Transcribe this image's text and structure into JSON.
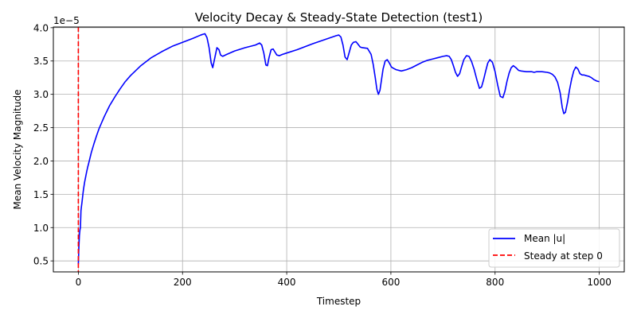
{
  "chart_data": {
    "type": "line",
    "title": "Velocity Decay & Steady-State Detection (test1)",
    "xlabel": "Timestep",
    "ylabel": "Mean Velocity Magnitude",
    "y_offset_text": "1e−5",
    "xlim": [
      -48,
      1048
    ],
    "ylim": [
      0.335,
      4.01
    ],
    "x_ticks": [
      0,
      200,
      400,
      600,
      800,
      1000
    ],
    "y_ticks": [
      0.5,
      1.0,
      1.5,
      2.0,
      2.5,
      3.0,
      3.5,
      4.0
    ],
    "y_tick_labels": [
      "0.5",
      "1.0",
      "1.5",
      "2.0",
      "2.5",
      "3.0",
      "3.5",
      "4.0"
    ],
    "grid": true,
    "legend_position": "lower-right",
    "series": [
      {
        "name": "Mean |u|",
        "color": "#0000ff",
        "style": "solid",
        "x": [
          0,
          1,
          2,
          3,
          4,
          5,
          6,
          7,
          8,
          9,
          10,
          12,
          14,
          16,
          18,
          20,
          25,
          30,
          35,
          40,
          50,
          60,
          70,
          80,
          90,
          100,
          120,
          140,
          160,
          180,
          200,
          220,
          235,
          243,
          247,
          251,
          255,
          258,
          262,
          266,
          270,
          273,
          277,
          285,
          300,
          320,
          340,
          348,
          352,
          356,
          360,
          363,
          366,
          370,
          374,
          377,
          381,
          386,
          392,
          400,
          420,
          450,
          480,
          495,
          500,
          504,
          508,
          512,
          516,
          520,
          524,
          528,
          533,
          537,
          541,
          545,
          555,
          562,
          566,
          570,
          573,
          576,
          579,
          582,
          585,
          589,
          593,
          597,
          601,
          605,
          610,
          620,
          630,
          640,
          650,
          660,
          670,
          680,
          690,
          700,
          707,
          712,
          716,
          720,
          724,
          728,
          732,
          736,
          740,
          745,
          750,
          755,
          760,
          765,
          770,
          774,
          778,
          782,
          786,
          790,
          795,
          800,
          805,
          810,
          815,
          819,
          823,
          827,
          831,
          835,
          840,
          845,
          850,
          860,
          870,
          875,
          880,
          890,
          900,
          905,
          910,
          915,
          920,
          925,
          929,
          932,
          935,
          939,
          943,
          947,
          951,
          955,
          959,
          963,
          967,
          971,
          975,
          980,
          985,
          990,
          995,
          1000
        ],
        "y": [
          0.45,
          0.7,
          0.88,
          0.96,
          1.0,
          1.25,
          1.32,
          1.38,
          1.45,
          1.52,
          1.58,
          1.68,
          1.76,
          1.84,
          1.91,
          1.97,
          2.13,
          2.26,
          2.38,
          2.49,
          2.67,
          2.83,
          2.96,
          3.08,
          3.19,
          3.28,
          3.43,
          3.55,
          3.64,
          3.72,
          3.78,
          3.84,
          3.89,
          3.91,
          3.85,
          3.7,
          3.47,
          3.4,
          3.55,
          3.7,
          3.67,
          3.59,
          3.57,
          3.6,
          3.65,
          3.7,
          3.74,
          3.77,
          3.74,
          3.62,
          3.44,
          3.43,
          3.55,
          3.67,
          3.68,
          3.64,
          3.59,
          3.58,
          3.6,
          3.62,
          3.67,
          3.76,
          3.84,
          3.88,
          3.89,
          3.86,
          3.74,
          3.56,
          3.52,
          3.63,
          3.74,
          3.78,
          3.79,
          3.75,
          3.71,
          3.7,
          3.69,
          3.6,
          3.45,
          3.25,
          3.08,
          3.0,
          3.06,
          3.22,
          3.38,
          3.5,
          3.52,
          3.47,
          3.41,
          3.39,
          3.37,
          3.35,
          3.37,
          3.4,
          3.44,
          3.48,
          3.51,
          3.53,
          3.55,
          3.57,
          3.58,
          3.57,
          3.52,
          3.43,
          3.33,
          3.27,
          3.31,
          3.42,
          3.52,
          3.58,
          3.57,
          3.49,
          3.37,
          3.22,
          3.09,
          3.11,
          3.22,
          3.35,
          3.47,
          3.52,
          3.48,
          3.34,
          3.14,
          2.97,
          2.95,
          3.05,
          3.2,
          3.32,
          3.4,
          3.43,
          3.4,
          3.36,
          3.35,
          3.34,
          3.34,
          3.33,
          3.34,
          3.34,
          3.33,
          3.32,
          3.3,
          3.26,
          3.18,
          3.02,
          2.8,
          2.71,
          2.73,
          2.88,
          3.07,
          3.23,
          3.35,
          3.41,
          3.38,
          3.31,
          3.29,
          3.29,
          3.28,
          3.27,
          3.25,
          3.22,
          3.2,
          3.19
        ]
      },
      {
        "name": "Steady at step 0",
        "color": "#ff0000",
        "style": "dashed",
        "vline_x": 0
      }
    ]
  }
}
